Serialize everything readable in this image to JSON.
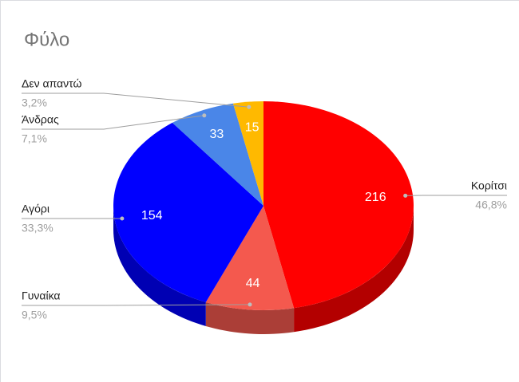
{
  "chart_data": {
    "type": "pie",
    "title": "Φύλο",
    "three_d": true,
    "categories": [
      "Κορίτσι",
      "Γυναίκα",
      "Αγόρι",
      "Άνδρας",
      "Δεν απαντώ"
    ],
    "values": [
      216,
      44,
      154,
      33,
      15
    ],
    "percent_labels": [
      "46,8%",
      "9,5%",
      "33,3%",
      "7,1%",
      "3,2%"
    ],
    "colors": [
      "#ff0000",
      "#f4594e",
      "#0000ff",
      "#4a86e8",
      "#ffb900"
    ]
  }
}
